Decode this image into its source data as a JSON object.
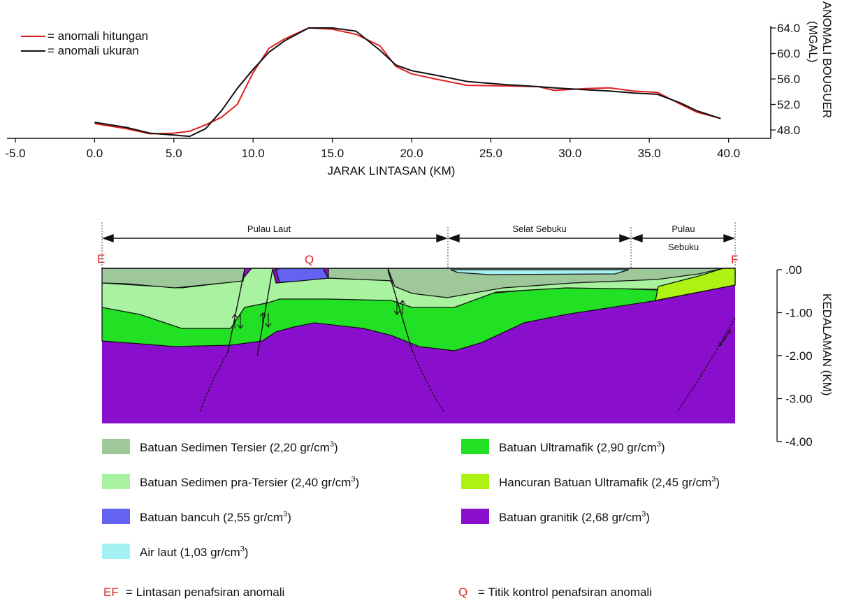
{
  "chart_data": [
    {
      "type": "line",
      "xlabel": "JARAK LINTASAN (KM)",
      "ylabel_line1": "ANOMALI BOUGUER",
      "ylabel_line2": "(MGAL)",
      "xlim": [
        -5.0,
        42.0
      ],
      "ylim": [
        46.0,
        64.5
      ],
      "x_ticks": [
        "-5.0",
        "0.0",
        "5.0",
        "10.0",
        "15.0",
        "20.0",
        "25.0",
        "30.0",
        "35.0",
        "40.0"
      ],
      "y_ticks": [
        "48.0",
        "52.0",
        "56.0",
        "60.0",
        "64.0"
      ],
      "series": [
        {
          "name": "= anomali hitungan",
          "color": "#e02020",
          "x": [
            0.0,
            2.0,
            3.5,
            5.0,
            6.0,
            7.0,
            8.0,
            9.0,
            10.0,
            11.0,
            12.0,
            13.5,
            15.0,
            16.5,
            18.0,
            19.0,
            20.0,
            21.5,
            23.5,
            26.0,
            28.0,
            29.0,
            31.0,
            32.5,
            34.0,
            35.5,
            37.0,
            38.0,
            39.5
          ],
          "y": [
            49.0,
            48.2,
            47.4,
            47.5,
            47.8,
            48.8,
            50.0,
            52.0,
            57.0,
            60.8,
            62.3,
            64.0,
            63.8,
            63.0,
            61.2,
            58.0,
            56.8,
            56.0,
            55.0,
            54.9,
            54.8,
            54.2,
            54.5,
            54.6,
            54.1,
            53.9,
            52.0,
            50.8,
            49.8
          ]
        },
        {
          "name": "= anomali ukuran",
          "color": "#111111",
          "x": [
            0.0,
            2.0,
            3.5,
            5.0,
            6.0,
            7.0,
            8.0,
            9.0,
            10.0,
            11.0,
            12.0,
            13.5,
            15.0,
            16.5,
            18.0,
            19.0,
            20.0,
            21.5,
            23.5,
            26.0,
            28.0,
            29.0,
            31.0,
            32.5,
            34.0,
            35.5,
            37.0,
            38.0,
            39.5
          ],
          "y": [
            49.2,
            48.4,
            47.5,
            47.2,
            47.0,
            48.2,
            51.0,
            54.5,
            57.5,
            60.2,
            62.0,
            64.0,
            64.0,
            63.5,
            60.5,
            58.2,
            57.3,
            56.6,
            55.6,
            55.1,
            54.8,
            54.6,
            54.3,
            54.1,
            53.8,
            53.6,
            52.2,
            51.0,
            49.8
          ]
        }
      ]
    },
    {
      "type": "cross-section",
      "ylabel": "KEDALAMAN (KM)",
      "ylim": [
        0.0,
        -4.0
      ],
      "y_ticks": [
        ".00",
        "-1.00",
        "-2.00",
        "-3.00",
        "-4.00"
      ],
      "segments": [
        "Pulau Laut",
        "Selat  Sebuku",
        "Pulau",
        "Sebuku"
      ],
      "point_labels": {
        "start": "E",
        "end": "F",
        "control": "Q"
      },
      "units": [
        {
          "key": "tersier",
          "color": "#9ec79a",
          "label": "Batuan Sedimen Tersier (2,20 gr/cm",
          "sup": "3",
          "tail": ")"
        },
        {
          "key": "pratersier",
          "color": "#a8f2a0",
          "label": "Batuan Sedimen pra-Tersier (2,40 gr/cm",
          "sup": "3",
          "tail": ")"
        },
        {
          "key": "bancuh",
          "color": "#6462f0",
          "label": "Batuan bancuh (2,55 gr/cm",
          "sup": "3",
          "tail": ")"
        },
        {
          "key": "airlaut",
          "color": "#a4f2f4",
          "label": "Air laut (1,03 gr/cm",
          "sup": "3",
          "tail": ")"
        },
        {
          "key": "ultramafik",
          "color": "#22e024",
          "label": "Batuan Ultramafik (2,90 gr/cm",
          "sup": "3",
          "tail": ")"
        },
        {
          "key": "hancuran",
          "color": "#aef214",
          "label": "Hancuran Batuan Ultramafik (2,45 gr/cm",
          "sup": "3",
          "tail": ")"
        },
        {
          "key": "granitik",
          "color": "#8a0fcc",
          "label": "Batuan granitik (2,68 gr/cm",
          "sup": "3",
          "tail": ")"
        }
      ]
    }
  ],
  "notes": {
    "ef_code": "EF",
    "ef_text": "= Lintasan penafsiran anomali",
    "q_code": "Q",
    "q_text": "= Titik kontrol penafsiran anomali"
  }
}
